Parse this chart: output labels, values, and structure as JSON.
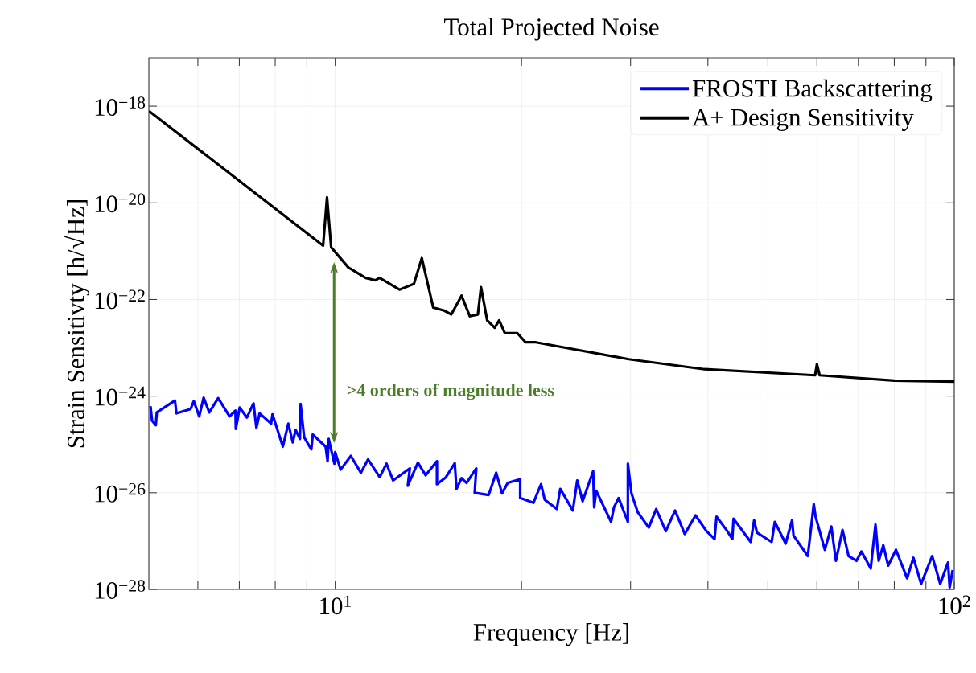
{
  "chart_data": {
    "type": "line",
    "title": "Total Projected Noise",
    "xlabel": "Frequency [Hz]",
    "ylabel": "Strain Sensitivty [h/√Hz]",
    "log": "xy",
    "xlim": [
      5,
      100
    ],
    "ylim": [
      1e-28,
      1e-17
    ],
    "xticks": [
      {
        "value": 6,
        "label": null
      },
      {
        "value": 7,
        "label": null
      },
      {
        "value": 8,
        "label": null
      },
      {
        "value": 9,
        "label": null
      },
      {
        "value": 10,
        "label": "10$^{1}$"
      },
      {
        "value": 20,
        "label": null
      },
      {
        "value": 30,
        "label": null
      },
      {
        "value": 40,
        "label": null
      },
      {
        "value": 50,
        "label": null
      },
      {
        "value": 60,
        "label": null
      },
      {
        "value": 70,
        "label": null
      },
      {
        "value": 80,
        "label": null
      },
      {
        "value": 90,
        "label": null
      },
      {
        "value": 100,
        "label": "10$^{2}$"
      }
    ],
    "yticks": [
      {
        "value": 1e-28,
        "label": "10$^{−28}$"
      },
      {
        "value": 1e-26,
        "label": "10$^{−26}$"
      },
      {
        "value": 1e-24,
        "label": "10$^{−24}$"
      },
      {
        "value": 1e-22,
        "label": "10$^{−22}$"
      },
      {
        "value": 1e-20,
        "label": "10$^{−20}$"
      },
      {
        "value": 1e-18,
        "label": "10$^{−18}$"
      }
    ],
    "grid": true,
    "legend": "top right",
    "series": [
      {
        "name": "FROSTI Backscattering",
        "color": "#0000ff",
        "x": [
          5.03,
          5.06,
          5.13,
          5.15,
          5.51,
          5.54,
          5.84,
          5.91,
          6.03,
          6.13,
          6.26,
          6.47,
          6.75,
          6.9,
          6.91,
          7.01,
          7.2,
          7.38,
          7.46,
          7.55,
          7.88,
          7.92,
          8.23,
          8.4,
          8.54,
          8.63,
          8.77,
          8.79,
          8.91,
          9.15,
          9.2,
          9.65,
          9.72,
          9.76,
          9.97,
          10.0,
          10.2,
          10.6,
          11.0,
          11.3,
          11.8,
          12.1,
          12.4,
          13.2,
          13.1,
          13.6,
          14.0,
          14.6,
          14.6,
          15.1,
          15.6,
          15.7,
          16.0,
          16.3,
          16.9,
          16.8,
          17.7,
          18.2,
          18.6,
          19.0,
          19.9,
          19.9,
          20.9,
          21.5,
          21.8,
          22.8,
          23.1,
          24.2,
          24.6,
          25.1,
          26.1,
          26.2,
          26.4,
          27.9,
          28.2,
          28.7,
          29.7,
          29.7,
          30.1,
          30.8,
          32.1,
          33.0,
          34.2,
          35.4,
          36.7,
          38.2,
          39.8,
          41.0,
          41.3,
          43.0,
          43.8,
          44.0,
          46.9,
          47.5,
          48.0,
          50.7,
          51.3,
          53.4,
          54.7,
          55.0,
          58.0,
          59.3,
          59.7,
          61.8,
          63.3,
          64.4,
          66.0,
          67.5,
          69.5,
          70.8,
          73.3,
          74.6,
          75.5,
          76.8,
          78.2,
          80.5,
          83.9,
          85.9,
          88.4,
          92.1,
          94.9,
          97.7,
          98.3,
          99.4
        ],
        "values": [
          6.2e-25,
          3.1e-25,
          2.5e-25,
          4.6e-25,
          8.1e-25,
          4.4e-25,
          5.4e-25,
          7.9e-25,
          3.8e-25,
          9.3e-25,
          4.6e-25,
          9.1e-25,
          3.8e-25,
          5e-25,
          2.1e-25,
          5.8e-25,
          3.6e-25,
          7.1e-25,
          2.2e-25,
          4.4e-25,
          2.7e-25,
          4.2e-25,
          9e-26,
          2.7e-25,
          1.1e-25,
          2e-25,
          1.3e-25,
          6.9e-25,
          1.4e-25,
          7.9e-26,
          1.6e-25,
          9e-26,
          4.5e-26,
          1.3e-25,
          4e-26,
          6.9e-26,
          3e-26,
          5.8e-26,
          2.6e-26,
          4.9e-26,
          2.1e-26,
          4e-26,
          1.8e-26,
          3.2e-26,
          1.4e-26,
          4.2e-26,
          2.3e-26,
          4.5e-26,
          1.5e-26,
          2.1e-26,
          4.1e-26,
          1.2e-26,
          2e-26,
          1.6e-26,
          3.2e-26,
          1e-26,
          9e-27,
          2.6e-26,
          9.7e-27,
          1.6e-26,
          1.9e-26,
          7.8e-27,
          6.2e-27,
          1.5e-26,
          7.2e-27,
          4.6e-27,
          1.2e-26,
          4.3e-27,
          1.8e-26,
          6.7e-27,
          2.8e-26,
          5e-27,
          1.1e-26,
          2.5e-27,
          5e-27,
          7.8e-27,
          2.5e-27,
          4e-26,
          9.7e-27,
          4e-27,
          1.9e-27,
          4.6e-27,
          1.6e-27,
          4.3e-27,
          1.4e-27,
          3.4e-27,
          1.6e-27,
          1.1e-27,
          3.2e-27,
          1.6e-27,
          1.1e-27,
          2.9e-27,
          9.6e-28,
          2.7e-27,
          1.5e-27,
          9.6e-28,
          2.5e-27,
          8.9e-28,
          2.7e-27,
          1.3e-27,
          4.9e-28,
          5.8e-27,
          3.2e-27,
          6.6e-28,
          2e-27,
          3.9e-28,
          1.7e-27,
          4.9e-28,
          3.9e-28,
          6.1e-28,
          2.7e-28,
          2.2e-27,
          3.9e-28,
          8.2e-28,
          3.1e-28,
          6.6e-28,
          1.7e-28,
          4.5e-28,
          1.3e-28,
          4.9e-28,
          1.3e-28,
          3.6e-28,
          1.1e-28,
          2.5e-28
        ]
      },
      {
        "name": "A+ Design Sensitivity",
        "color": "#000000",
        "x": [
          5,
          9.56,
          9.7,
          9.85,
          10.5,
          11.2,
          11.6,
          11.8,
          12.7,
          13.4,
          13.8,
          14.4,
          15.0,
          15.4,
          16.0,
          16.5,
          17.0,
          17.2,
          17.6,
          18.1,
          18.4,
          18.8,
          19.7,
          20.3,
          21.1,
          29.8,
          39.5,
          59.6,
          60.0,
          60.6,
          80,
          100
        ],
        "values": [
          8e-19,
          1.3e-21,
          1.3e-20,
          1.2e-21,
          4.6e-22,
          2.8e-22,
          2.5e-22,
          2.8e-22,
          1.6e-22,
          2.1e-22,
          7.2e-22,
          6.8e-23,
          5.9e-23,
          4.9e-23,
          1.2e-22,
          4.5e-23,
          4.9e-23,
          1.8e-22,
          3.7e-23,
          2.6e-23,
          3.7e-23,
          2e-23,
          2e-23,
          1.3e-23,
          1.3e-23,
          5.8e-24,
          3.6e-24,
          2.7e-24,
          4.6e-24,
          2.7e-24,
          2.1e-24,
          2e-24
        ]
      }
    ],
    "annotations": [
      ">4 orders of magnitude less"
    ]
  }
}
